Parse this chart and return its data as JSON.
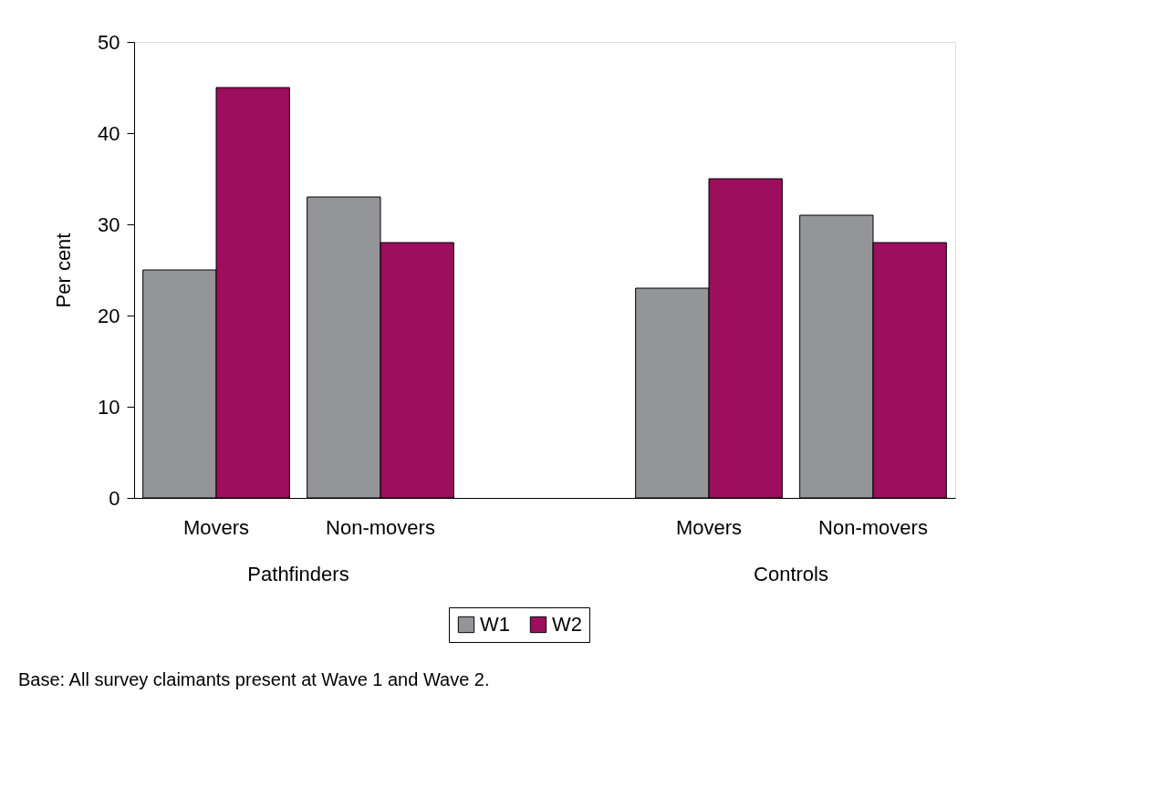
{
  "chart_data": {
    "type": "bar",
    "ylabel": "Per cent",
    "categories": [
      "Movers",
      "Non-movers",
      null,
      "Movers",
      "Non-movers"
    ],
    "series": [
      {
        "name": "W1",
        "color": "#939598",
        "values": [
          25,
          33,
          null,
          23,
          31
        ]
      },
      {
        "name": "W2",
        "color": "#9b0f5c",
        "values": [
          45,
          28,
          null,
          35,
          28
        ]
      }
    ],
    "ylim": [
      0,
      50
    ],
    "yticks": [
      0,
      10,
      20,
      30,
      40,
      50
    ],
    "grid": false,
    "legend": "bottom",
    "annotations": [
      "Pathfinders",
      "Controls",
      "Base: All survey claimants present at Wave 1 and Wave 2."
    ]
  }
}
